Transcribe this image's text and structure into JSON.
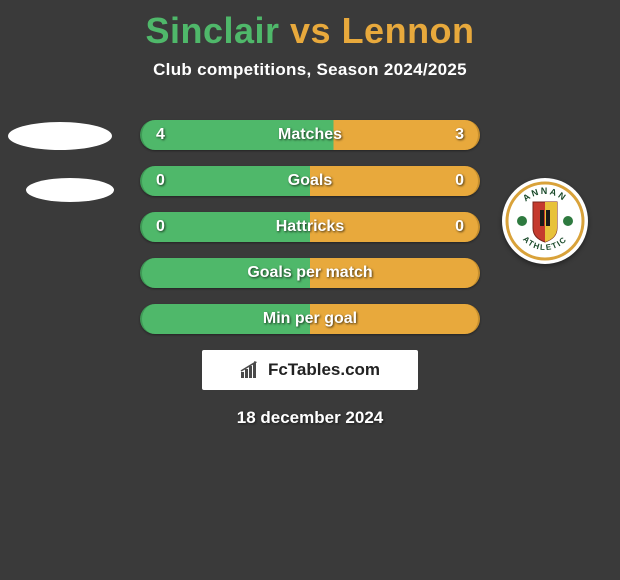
{
  "header": {
    "title_left": "Sinclair",
    "title_vs": " vs ",
    "title_right": "Lennon",
    "title_left_color": "#4fb86a",
    "title_right_color": "#e8a93c",
    "subtitle": "Club competitions, Season 2024/2025"
  },
  "stats": {
    "left_color": "#4fb86a",
    "right_color": "#e8a93c",
    "border_left": "2px solid #3e9a56",
    "border_right": "2px solid #c68f2e",
    "rows": [
      {
        "label": "Matches",
        "left": "4",
        "right": "3",
        "left_pct": 57,
        "has_values": true
      },
      {
        "label": "Goals",
        "left": "0",
        "right": "0",
        "left_pct": 50,
        "has_values": true
      },
      {
        "label": "Hattricks",
        "left": "0",
        "right": "0",
        "left_pct": 50,
        "has_values": true
      },
      {
        "label": "Goals per match",
        "left": "",
        "right": "",
        "left_pct": 50,
        "has_values": false
      },
      {
        "label": "Min per goal",
        "left": "",
        "right": "",
        "left_pct": 50,
        "has_values": false
      }
    ]
  },
  "side_decor": {
    "ellipse_color": "#ffffff"
  },
  "crest": {
    "ring_color": "#d9a23a",
    "top_text": "ANNAN",
    "bottom_text": "ATHLETIC",
    "text_color": "#1a4a2a",
    "shield_red": "#c53a2e",
    "shield_yellow": "#e8c23a",
    "accent_green": "#2e7a3f"
  },
  "footer": {
    "logo_text": "FcTables.com",
    "date": "18 december 2024",
    "logo_bar_color": "#4a4a4a"
  },
  "background_color": "#3a3a3a"
}
